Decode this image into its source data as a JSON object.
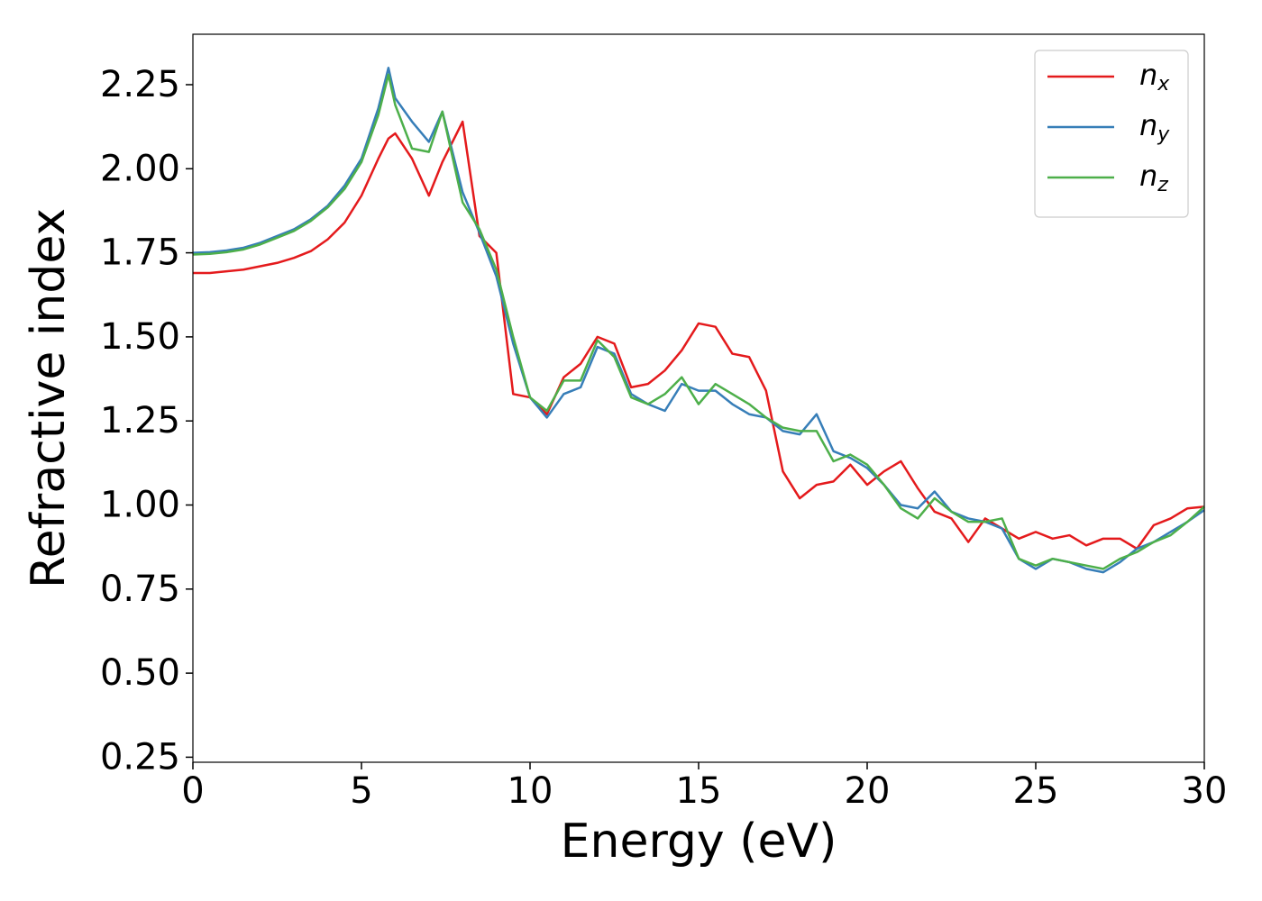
{
  "chart_data": {
    "type": "line",
    "xlabel": "Energy (eV)",
    "ylabel": "Refractive index",
    "x": [
      0,
      0.5,
      1,
      1.5,
      2,
      2.5,
      3,
      3.5,
      4,
      4.5,
      5,
      5.5,
      5.8,
      6,
      6.5,
      7,
      7.4,
      8,
      8.5,
      9,
      9.5,
      10,
      10.5,
      11,
      11.5,
      12,
      12.5,
      13,
      13.5,
      14,
      14.5,
      15,
      15.5,
      16,
      16.5,
      17,
      17.5,
      18,
      18.5,
      19,
      19.5,
      20,
      20.5,
      21,
      21.5,
      22,
      22.5,
      23,
      23.5,
      24,
      24.5,
      25,
      25.5,
      26,
      26.5,
      27,
      27.5,
      28,
      28.5,
      29,
      29.5,
      30
    ],
    "series": [
      {
        "name": "n",
        "subscript": "x",
        "color": "#e41a1c",
        "values": [
          1.69,
          1.69,
          1.695,
          1.7,
          1.71,
          1.72,
          1.735,
          1.755,
          1.79,
          1.84,
          1.92,
          2.03,
          2.09,
          2.105,
          2.03,
          1.92,
          2.02,
          2.14,
          1.8,
          1.75,
          1.33,
          1.32,
          1.27,
          1.38,
          1.42,
          1.5,
          1.48,
          1.35,
          1.36,
          1.4,
          1.46,
          1.54,
          1.53,
          1.45,
          1.44,
          1.34,
          1.1,
          1.02,
          1.06,
          1.07,
          1.12,
          1.06,
          1.1,
          1.13,
          1.05,
          0.98,
          0.96,
          0.89,
          0.96,
          0.93,
          0.9,
          0.92,
          0.9,
          0.91,
          0.88,
          0.9,
          0.9,
          0.87,
          0.94,
          0.96,
          0.99,
          0.995
        ]
      },
      {
        "name": "n",
        "subscript": "y",
        "color": "#377eb8",
        "values": [
          1.75,
          1.752,
          1.757,
          1.765,
          1.78,
          1.8,
          1.82,
          1.85,
          1.89,
          1.95,
          2.03,
          2.18,
          2.3,
          2.21,
          2.14,
          2.08,
          2.17,
          1.93,
          1.81,
          1.68,
          1.48,
          1.32,
          1.26,
          1.33,
          1.35,
          1.47,
          1.45,
          1.33,
          1.3,
          1.28,
          1.36,
          1.34,
          1.34,
          1.3,
          1.27,
          1.26,
          1.22,
          1.21,
          1.27,
          1.16,
          1.14,
          1.11,
          1.06,
          1.0,
          0.99,
          1.04,
          0.98,
          0.96,
          0.95,
          0.93,
          0.84,
          0.81,
          0.84,
          0.83,
          0.81,
          0.8,
          0.83,
          0.87,
          0.89,
          0.92,
          0.95,
          0.985
        ]
      },
      {
        "name": "n",
        "subscript": "z",
        "color": "#4daf4a",
        "values": [
          1.745,
          1.747,
          1.752,
          1.76,
          1.775,
          1.795,
          1.815,
          1.845,
          1.885,
          1.94,
          2.02,
          2.16,
          2.28,
          2.19,
          2.06,
          2.05,
          2.17,
          1.9,
          1.82,
          1.7,
          1.5,
          1.32,
          1.28,
          1.37,
          1.37,
          1.49,
          1.44,
          1.32,
          1.3,
          1.33,
          1.38,
          1.3,
          1.36,
          1.33,
          1.3,
          1.26,
          1.23,
          1.22,
          1.22,
          1.13,
          1.15,
          1.12,
          1.06,
          0.99,
          0.96,
          1.02,
          0.98,
          0.95,
          0.95,
          0.96,
          0.84,
          0.82,
          0.84,
          0.83,
          0.82,
          0.81,
          0.84,
          0.86,
          0.89,
          0.91,
          0.95,
          0.995
        ]
      }
    ],
    "xlim": [
      0,
      30
    ],
    "xticks": [
      0,
      5,
      10,
      15,
      20,
      25,
      30
    ],
    "ylim": [
      0.235,
      2.4
    ],
    "yticks": [
      0.25,
      {
        "value": 0.5,
        "label": "0.50"
      },
      0.75,
      {
        "value": 1,
        "label": "1.00"
      },
      1.25,
      {
        "value": 1.5,
        "label": "1.50"
      },
      1.75,
      {
        "value": 2,
        "label": "2.00"
      },
      2.25
    ],
    "legend": "upper right",
    "grid": false
  }
}
